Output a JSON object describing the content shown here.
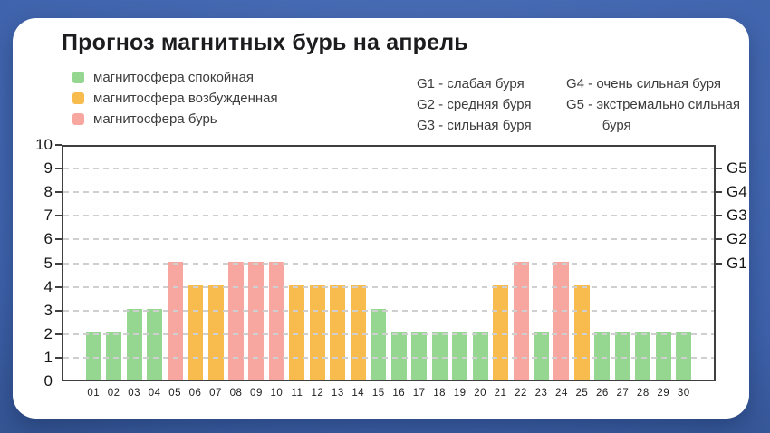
{
  "title": "Прогноз магнитных бурь на апрель",
  "legend": [
    {
      "label": "магнитосфера спокойная",
      "state": "calm",
      "color": "#95d690"
    },
    {
      "label": "магнитосфера возбужденная",
      "state": "excited",
      "color": "#f8bb4e"
    },
    {
      "label": "магнитосфера бурь",
      "state": "storm",
      "color": "#f7a6a0"
    }
  ],
  "storm_scale": [
    "G1 - слабая буря",
    "G2 - средняя буря",
    "G3 - сильная буря",
    "G4 - очень сильная буря",
    "G5 - экстремально сильная буря"
  ],
  "chart_data": {
    "type": "bar",
    "title": "Прогноз магнитных бурь на апрель",
    "categories": [
      "01",
      "02",
      "03",
      "04",
      "05",
      "06",
      "07",
      "08",
      "09",
      "10",
      "11",
      "12",
      "13",
      "14",
      "15",
      "16",
      "17",
      "18",
      "19",
      "20",
      "21",
      "22",
      "23",
      "24",
      "25",
      "26",
      "27",
      "28",
      "29",
      "30"
    ],
    "values": [
      2,
      2,
      3,
      3,
      5,
      4,
      4,
      5,
      5,
      5,
      4,
      4,
      4,
      4,
      3,
      2,
      2,
      2,
      2,
      2,
      4,
      5,
      2,
      5,
      4,
      2,
      2,
      2,
      2,
      2
    ],
    "states": [
      "calm",
      "calm",
      "calm",
      "calm",
      "storm",
      "excited",
      "excited",
      "storm",
      "storm",
      "storm",
      "excited",
      "excited",
      "excited",
      "excited",
      "calm",
      "calm",
      "calm",
      "calm",
      "calm",
      "calm",
      "excited",
      "storm",
      "calm",
      "storm",
      "excited",
      "calm",
      "calm",
      "calm",
      "calm",
      "calm"
    ],
    "state_colors": {
      "calm": "#95d690",
      "excited": "#f8bb4e",
      "storm": "#f7a6a0"
    },
    "xlabel": "",
    "ylabel": "",
    "ylim": [
      0,
      10
    ],
    "yticks": [
      0,
      1,
      2,
      3,
      4,
      5,
      6,
      7,
      8,
      9,
      10
    ],
    "grid": "horizontal-dashed",
    "right_axis_labels": [
      {
        "value": 9,
        "label": "G5"
      },
      {
        "value": 8,
        "label": "G4"
      },
      {
        "value": 7,
        "label": "G3"
      },
      {
        "value": 6,
        "label": "G2"
      },
      {
        "value": 5,
        "label": "G1"
      }
    ]
  },
  "colors": {
    "background_top": "#4c70b8",
    "background_bottom": "#27406f",
    "card": "#ffffff",
    "axis": "#3f3f3f",
    "gridline": "#cfcfcf",
    "text": "#1c1c1e"
  }
}
